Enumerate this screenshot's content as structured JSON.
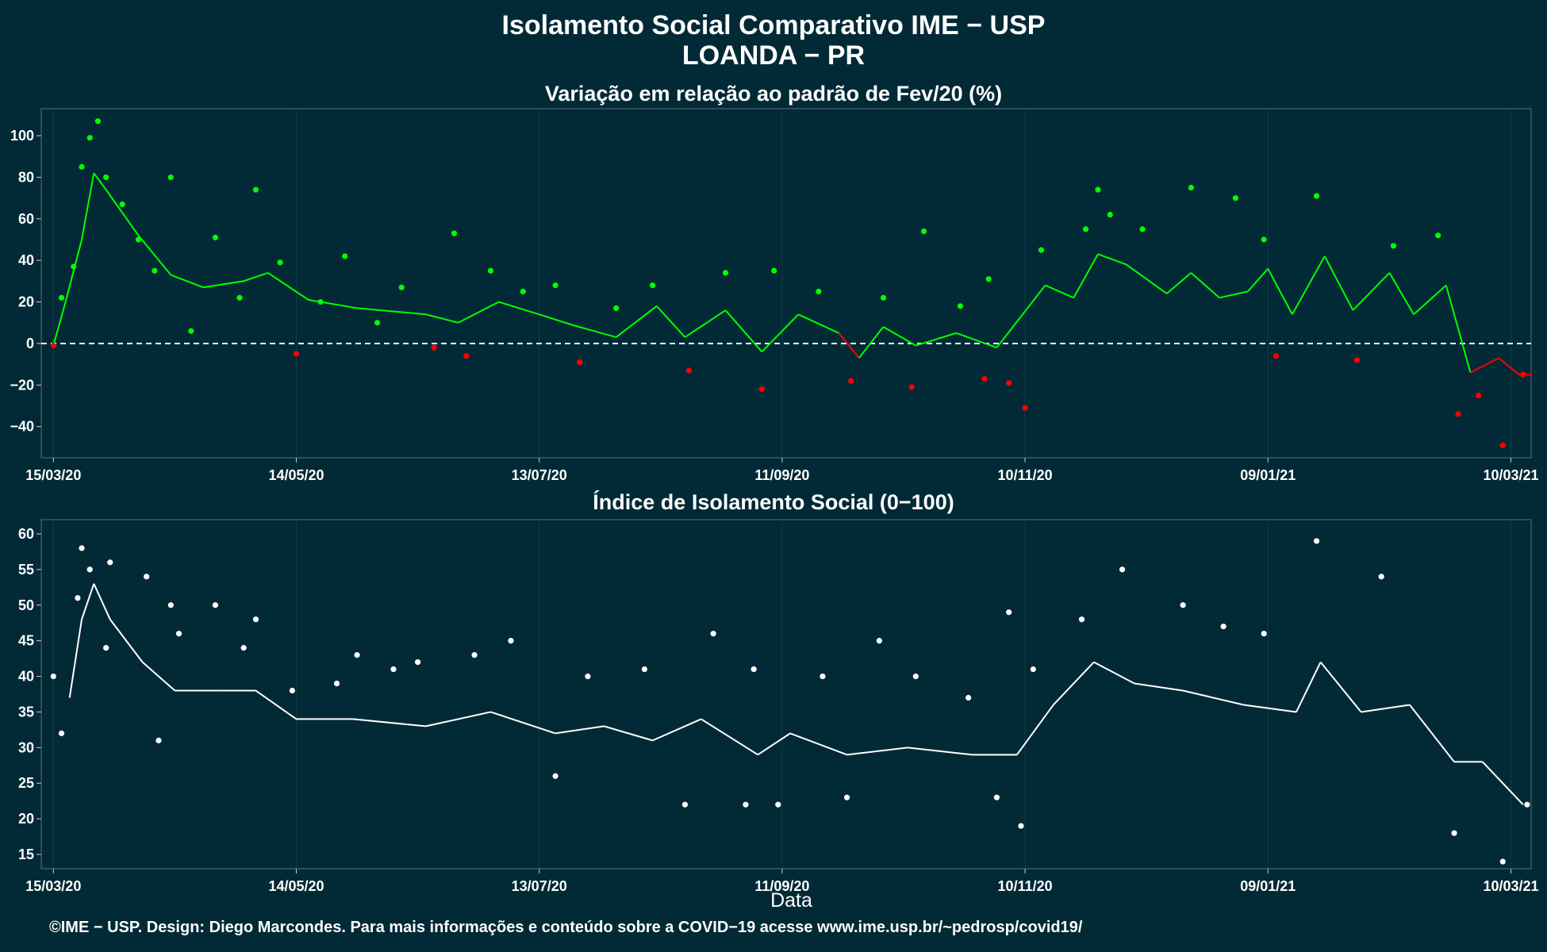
{
  "title": "Isolamento Social Comparativo IME − USP",
  "subtitle": "LOANDA − PR",
  "xlabel": "Data",
  "footer": "©IME − USP. Design: Diego Marcondes. Para mais informações e conteúdo sobre a COVID−19 acesse www.ime.usp.br/~pedrosp/covid19/",
  "colors": {
    "background": "#022a36",
    "positive": "#00ff00",
    "negative": "#ff0000",
    "index": "#ffffff",
    "zero_line": "#ffffff"
  },
  "chart_data": [
    {
      "type": "scatter",
      "title": "Variação em relação ao padrão de Fev/20 (%)",
      "xlabel": "",
      "ylabel": "",
      "x_tick_labels": [
        "15/03/20",
        "14/05/20",
        "13/07/20",
        "11/09/20",
        "10/11/20",
        "09/01/21",
        "10/03/21"
      ],
      "y_ticks": [
        -40,
        -20,
        0,
        20,
        40,
        60,
        80,
        100
      ],
      "ylim": [
        -55,
        113
      ],
      "xlim": [
        "2020-03-15",
        "2021-03-15"
      ],
      "reference_line": 0,
      "points_sampled": [
        {
          "x": "2020-03-15",
          "y": -1
        },
        {
          "x": "2020-03-17",
          "y": 22
        },
        {
          "x": "2020-03-20",
          "y": 37
        },
        {
          "x": "2020-03-22",
          "y": 85
        },
        {
          "x": "2020-03-24",
          "y": 99
        },
        {
          "x": "2020-03-26",
          "y": 107
        },
        {
          "x": "2020-03-28",
          "y": 80
        },
        {
          "x": "2020-04-01",
          "y": 67
        },
        {
          "x": "2020-04-05",
          "y": 50
        },
        {
          "x": "2020-04-09",
          "y": 35
        },
        {
          "x": "2020-04-13",
          "y": 80
        },
        {
          "x": "2020-04-18",
          "y": 6
        },
        {
          "x": "2020-04-24",
          "y": 51
        },
        {
          "x": "2020-04-30",
          "y": 22
        },
        {
          "x": "2020-05-04",
          "y": 74
        },
        {
          "x": "2020-05-10",
          "y": 39
        },
        {
          "x": "2020-05-14",
          "y": -5
        },
        {
          "x": "2020-05-20",
          "y": 20
        },
        {
          "x": "2020-05-26",
          "y": 42
        },
        {
          "x": "2020-06-03",
          "y": 10
        },
        {
          "x": "2020-06-09",
          "y": 27
        },
        {
          "x": "2020-06-17",
          "y": -2
        },
        {
          "x": "2020-06-22",
          "y": 53
        },
        {
          "x": "2020-06-25",
          "y": -6
        },
        {
          "x": "2020-07-01",
          "y": 35
        },
        {
          "x": "2020-07-09",
          "y": 25
        },
        {
          "x": "2020-07-17",
          "y": 28
        },
        {
          "x": "2020-07-23",
          "y": -9
        },
        {
          "x": "2020-08-01",
          "y": 17
        },
        {
          "x": "2020-08-10",
          "y": 28
        },
        {
          "x": "2020-08-19",
          "y": -13
        },
        {
          "x": "2020-08-28",
          "y": 34
        },
        {
          "x": "2020-09-06",
          "y": -22
        },
        {
          "x": "2020-09-09",
          "y": 35
        },
        {
          "x": "2020-09-20",
          "y": 25
        },
        {
          "x": "2020-09-28",
          "y": -18
        },
        {
          "x": "2020-10-06",
          "y": 22
        },
        {
          "x": "2020-10-13",
          "y": -21
        },
        {
          "x": "2020-10-16",
          "y": 54
        },
        {
          "x": "2020-10-25",
          "y": 18
        },
        {
          "x": "2020-10-31",
          "y": -17
        },
        {
          "x": "2020-11-01",
          "y": 31
        },
        {
          "x": "2020-11-06",
          "y": -19
        },
        {
          "x": "2020-11-10",
          "y": -31
        },
        {
          "x": "2020-11-14",
          "y": 45
        },
        {
          "x": "2020-11-25",
          "y": 55
        },
        {
          "x": "2020-11-28",
          "y": 74
        },
        {
          "x": "2020-12-01",
          "y": 62
        },
        {
          "x": "2020-12-09",
          "y": 55
        },
        {
          "x": "2020-12-21",
          "y": 75
        },
        {
          "x": "2021-01-01",
          "y": 70
        },
        {
          "x": "2021-01-08",
          "y": 50
        },
        {
          "x": "2021-01-11",
          "y": -6
        },
        {
          "x": "2021-01-21",
          "y": 71
        },
        {
          "x": "2021-01-31",
          "y": -8
        },
        {
          "x": "2021-02-09",
          "y": 47
        },
        {
          "x": "2021-02-20",
          "y": 52
        },
        {
          "x": "2021-02-25",
          "y": -34
        },
        {
          "x": "2021-03-02",
          "y": -25
        },
        {
          "x": "2021-03-08",
          "y": -49
        },
        {
          "x": "2021-03-13",
          "y": -15
        }
      ],
      "moving_average_sampled": [
        {
          "x": "2020-03-15",
          "y": -1
        },
        {
          "x": "2020-03-18",
          "y": 20
        },
        {
          "x": "2020-03-22",
          "y": 50
        },
        {
          "x": "2020-03-25",
          "y": 82
        },
        {
          "x": "2020-03-28",
          "y": 74
        },
        {
          "x": "2020-04-05",
          "y": 52
        },
        {
          "x": "2020-04-13",
          "y": 33
        },
        {
          "x": "2020-04-21",
          "y": 27
        },
        {
          "x": "2020-05-01",
          "y": 30
        },
        {
          "x": "2020-05-07",
          "y": 34
        },
        {
          "x": "2020-05-17",
          "y": 21
        },
        {
          "x": "2020-05-29",
          "y": 17
        },
        {
          "x": "2020-06-15",
          "y": 14
        },
        {
          "x": "2020-06-23",
          "y": 10
        },
        {
          "x": "2020-07-03",
          "y": 20
        },
        {
          "x": "2020-07-13",
          "y": 14
        },
        {
          "x": "2020-07-21",
          "y": 9
        },
        {
          "x": "2020-08-01",
          "y": 3
        },
        {
          "x": "2020-08-11",
          "y": 18
        },
        {
          "x": "2020-08-18",
          "y": 3
        },
        {
          "x": "2020-08-28",
          "y": 16
        },
        {
          "x": "2020-09-06",
          "y": -4
        },
        {
          "x": "2020-09-15",
          "y": 14
        },
        {
          "x": "2020-09-25",
          "y": 5
        },
        {
          "x": "2020-09-30",
          "y": -7
        },
        {
          "x": "2020-10-06",
          "y": 8
        },
        {
          "x": "2020-10-14",
          "y": -1
        },
        {
          "x": "2020-10-24",
          "y": 5
        },
        {
          "x": "2020-11-03",
          "y": -2
        },
        {
          "x": "2020-11-15",
          "y": 28
        },
        {
          "x": "2020-11-22",
          "y": 22
        },
        {
          "x": "2020-11-28",
          "y": 43
        },
        {
          "x": "2020-12-05",
          "y": 38
        },
        {
          "x": "2020-12-15",
          "y": 24
        },
        {
          "x": "2020-12-21",
          "y": 34
        },
        {
          "x": "2020-12-28",
          "y": 22
        },
        {
          "x": "2021-01-04",
          "y": 25
        },
        {
          "x": "2021-01-09",
          "y": 36
        },
        {
          "x": "2021-01-15",
          "y": 14
        },
        {
          "x": "2021-01-23",
          "y": 42
        },
        {
          "x": "2021-01-30",
          "y": 16
        },
        {
          "x": "2021-02-08",
          "y": 34
        },
        {
          "x": "2021-02-14",
          "y": 14
        },
        {
          "x": "2021-02-22",
          "y": 28
        },
        {
          "x": "2021-02-28",
          "y": -14
        },
        {
          "x": "2021-03-07",
          "y": -7
        },
        {
          "x": "2021-03-12",
          "y": -15
        },
        {
          "x": "2021-03-15",
          "y": -15
        }
      ]
    },
    {
      "type": "scatter",
      "title": "Índice de Isolamento Social (0−100)",
      "xlabel": "Data",
      "ylabel": "",
      "x_tick_labels": [
        "15/03/20",
        "14/05/20",
        "13/07/20",
        "11/09/20",
        "10/11/20",
        "09/01/21",
        "10/03/21"
      ],
      "y_ticks": [
        15,
        20,
        25,
        30,
        35,
        40,
        45,
        50,
        55,
        60
      ],
      "ylim": [
        13,
        62
      ],
      "xlim": [
        "2020-03-15",
        "2021-03-15"
      ],
      "points_sampled": [
        {
          "x": "2020-03-15",
          "y": 40
        },
        {
          "x": "2020-03-17",
          "y": 32
        },
        {
          "x": "2020-03-21",
          "y": 51
        },
        {
          "x": "2020-03-22",
          "y": 58
        },
        {
          "x": "2020-03-24",
          "y": 55
        },
        {
          "x": "2020-03-28",
          "y": 44
        },
        {
          "x": "2020-03-29",
          "y": 56
        },
        {
          "x": "2020-04-07",
          "y": 54
        },
        {
          "x": "2020-04-10",
          "y": 31
        },
        {
          "x": "2020-04-13",
          "y": 50
        },
        {
          "x": "2020-04-15",
          "y": 46
        },
        {
          "x": "2020-04-24",
          "y": 50
        },
        {
          "x": "2020-05-01",
          "y": 44
        },
        {
          "x": "2020-05-04",
          "y": 48
        },
        {
          "x": "2020-05-13",
          "y": 38
        },
        {
          "x": "2020-05-24",
          "y": 39
        },
        {
          "x": "2020-05-29",
          "y": 43
        },
        {
          "x": "2020-06-07",
          "y": 41
        },
        {
          "x": "2020-06-13",
          "y": 42
        },
        {
          "x": "2020-06-27",
          "y": 43
        },
        {
          "x": "2020-07-06",
          "y": 45
        },
        {
          "x": "2020-07-17",
          "y": 26
        },
        {
          "x": "2020-07-25",
          "y": 40
        },
        {
          "x": "2020-08-08",
          "y": 41
        },
        {
          "x": "2020-08-18",
          "y": 22
        },
        {
          "x": "2020-08-25",
          "y": 46
        },
        {
          "x": "2020-09-02",
          "y": 22
        },
        {
          "x": "2020-09-04",
          "y": 41
        },
        {
          "x": "2020-09-10",
          "y": 22
        },
        {
          "x": "2020-09-21",
          "y": 40
        },
        {
          "x": "2020-09-27",
          "y": 23
        },
        {
          "x": "2020-10-05",
          "y": 45
        },
        {
          "x": "2020-10-14",
          "y": 40
        },
        {
          "x": "2020-10-27",
          "y": 37
        },
        {
          "x": "2020-11-03",
          "y": 23
        },
        {
          "x": "2020-11-06",
          "y": 49
        },
        {
          "x": "2020-11-09",
          "y": 19
        },
        {
          "x": "2020-11-12",
          "y": 41
        },
        {
          "x": "2020-11-24",
          "y": 48
        },
        {
          "x": "2020-12-04",
          "y": 55
        },
        {
          "x": "2020-12-19",
          "y": 50
        },
        {
          "x": "2020-12-29",
          "y": 47
        },
        {
          "x": "2021-01-08",
          "y": 46
        },
        {
          "x": "2021-01-21",
          "y": 59
        },
        {
          "x": "2021-02-06",
          "y": 54
        },
        {
          "x": "2021-02-24",
          "y": 18
        },
        {
          "x": "2021-03-08",
          "y": 14
        },
        {
          "x": "2021-03-14",
          "y": 22
        }
      ],
      "moving_average_sampled": [
        {
          "x": "2020-03-19",
          "y": 37
        },
        {
          "x": "2020-03-22",
          "y": 48
        },
        {
          "x": "2020-03-25",
          "y": 53
        },
        {
          "x": "2020-03-29",
          "y": 48
        },
        {
          "x": "2020-04-06",
          "y": 42
        },
        {
          "x": "2020-04-14",
          "y": 38
        },
        {
          "x": "2020-04-26",
          "y": 38
        },
        {
          "x": "2020-05-04",
          "y": 38
        },
        {
          "x": "2020-05-14",
          "y": 34
        },
        {
          "x": "2020-05-28",
          "y": 34
        },
        {
          "x": "2020-06-15",
          "y": 33
        },
        {
          "x": "2020-07-01",
          "y": 35
        },
        {
          "x": "2020-07-17",
          "y": 32
        },
        {
          "x": "2020-07-29",
          "y": 33
        },
        {
          "x": "2020-08-10",
          "y": 31
        },
        {
          "x": "2020-08-22",
          "y": 34
        },
        {
          "x": "2020-09-05",
          "y": 29
        },
        {
          "x": "2020-09-13",
          "y": 32
        },
        {
          "x": "2020-09-27",
          "y": 29
        },
        {
          "x": "2020-10-12",
          "y": 30
        },
        {
          "x": "2020-10-28",
          "y": 29
        },
        {
          "x": "2020-11-08",
          "y": 29
        },
        {
          "x": "2020-11-17",
          "y": 36
        },
        {
          "x": "2020-11-27",
          "y": 42
        },
        {
          "x": "2020-12-07",
          "y": 39
        },
        {
          "x": "2020-12-19",
          "y": 38
        },
        {
          "x": "2021-01-03",
          "y": 36
        },
        {
          "x": "2021-01-16",
          "y": 35
        },
        {
          "x": "2021-01-22",
          "y": 42
        },
        {
          "x": "2021-02-01",
          "y": 35
        },
        {
          "x": "2021-02-13",
          "y": 36
        },
        {
          "x": "2021-02-24",
          "y": 28
        },
        {
          "x": "2021-03-03",
          "y": 28
        },
        {
          "x": "2021-03-13",
          "y": 22
        }
      ]
    }
  ]
}
